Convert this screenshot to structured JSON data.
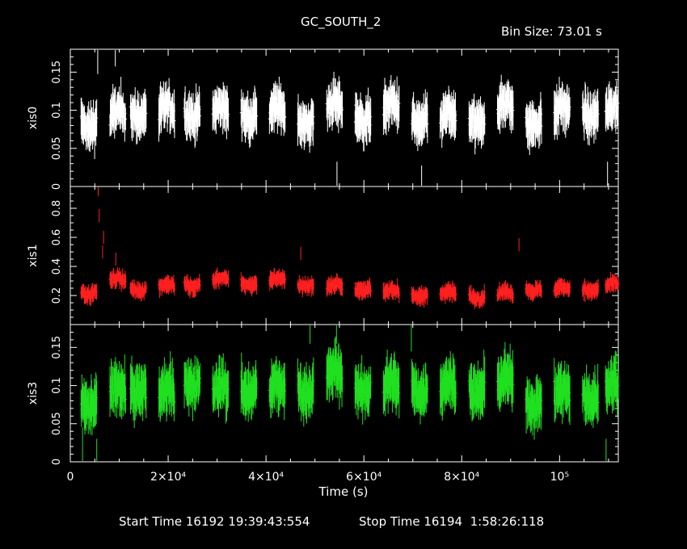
{
  "header": {
    "title": "GC_SOUTH_2",
    "bin_size": "Bin Size: 73.01 s"
  },
  "footer": {
    "start_time": "Start Time 16192 19:39:43:554",
    "stop_time": "Stop Time 16194  1:58:26:118"
  },
  "chart_data": {
    "type": "scatter",
    "title": "GC_SOUTH_2",
    "xlabel": "Time (s)",
    "xlim": [
      0,
      112000
    ],
    "x_ticks": [
      {
        "value": 0,
        "label": "0"
      },
      {
        "value": 20000,
        "label": "2×10⁴"
      },
      {
        "value": 40000,
        "label": "4×10⁴"
      },
      {
        "value": 60000,
        "label": "6×10⁴"
      },
      {
        "value": 80000,
        "label": "8×10⁴"
      },
      {
        "value": 100000,
        "label": "10⁵"
      }
    ],
    "x_minor_step": 5000,
    "orbit_period_s": 5800,
    "segment_start_s": [
      2200,
      8100,
      12300,
      18100,
      23300,
      29100,
      34900,
      40700,
      46500,
      52400,
      58200,
      64000,
      69800,
      75600,
      81500,
      87300,
      93100,
      98900,
      104700,
      109400
    ],
    "segment_length_s": 3200,
    "panels": [
      {
        "ylabel": "xis0",
        "color": "#ffffff",
        "ylim": [
          0,
          0.18
        ],
        "yticks": [
          {
            "value": 0,
            "label": "0"
          },
          {
            "value": 0.05,
            "label": "0.05"
          },
          {
            "value": 0.1,
            "label": "0.1"
          },
          {
            "value": 0.15,
            "label": "0.15"
          }
        ],
        "minor_step": 0.01,
        "mean_rate": 0.095,
        "spread": 0.025,
        "segment_means": [
          0.085,
          0.09,
          0.1,
          0.095,
          0.1,
          0.095,
          0.1,
          0.095,
          0.09,
          0.1,
          0.095,
          0.1,
          0.09,
          0.085,
          0.09,
          0.1,
          0.09,
          0.095,
          0.1,
          0.095
        ],
        "outliers": [
          {
            "x": 5600,
            "y": 0.17
          },
          {
            "x": 9200,
            "y": 0.18
          },
          {
            "x": 54500,
            "y": 0.01
          },
          {
            "x": 71800,
            "y": 0.005
          },
          {
            "x": 109800,
            "y": 0.01
          }
        ]
      },
      {
        "ylabel": "xis1",
        "color": "#ff2020",
        "ylim": [
          0,
          0.95
        ],
        "yticks": [
          {
            "value": 0.2,
            "label": "0.2"
          },
          {
            "value": 0.4,
            "label": "0.4"
          },
          {
            "value": 0.6,
            "label": "0.6"
          },
          {
            "value": 0.8,
            "label": "0.8"
          }
        ],
        "minor_step": 0.05,
        "mean_rate": 0.24,
        "spread": 0.05,
        "segment_means": [
          0.23,
          0.3,
          0.25,
          0.26,
          0.28,
          0.3,
          0.29,
          0.3,
          0.28,
          0.26,
          0.25,
          0.22,
          0.21,
          0.21,
          0.2,
          0.21,
          0.25,
          0.24,
          0.25,
          0.26
        ],
        "outliers": [
          {
            "x": 5700,
            "y": 0.93
          },
          {
            "x": 5900,
            "y": 0.75
          },
          {
            "x": 6800,
            "y": 0.6
          },
          {
            "x": 6600,
            "y": 0.5
          },
          {
            "x": 9300,
            "y": 0.45
          },
          {
            "x": 47100,
            "y": 0.49
          },
          {
            "x": 91700,
            "y": 0.55
          }
        ]
      },
      {
        "ylabel": "xis3",
        "color": "#20e020",
        "ylim": [
          0,
          0.18
        ],
        "yticks": [
          {
            "value": 0,
            "label": "0"
          },
          {
            "value": 0.05,
            "label": "0.05"
          },
          {
            "value": 0.1,
            "label": "0.1"
          },
          {
            "value": 0.15,
            "label": "0.15"
          }
        ],
        "minor_step": 0.01,
        "mean_rate": 0.09,
        "spread": 0.028,
        "segment_means": [
          0.08,
          0.09,
          0.1,
          0.085,
          0.11,
          0.09,
          0.1,
          0.09,
          0.1,
          0.11,
          0.1,
          0.095,
          0.1,
          0.095,
          0.1,
          0.1,
          0.085,
          0.085,
          0.09,
          0.095
        ],
        "outliers": [
          {
            "x": 2500,
            "y": 0.02
          },
          {
            "x": 5400,
            "y": 0.005
          },
          {
            "x": 49000,
            "y": 0.18
          },
          {
            "x": 54400,
            "y": 0.18
          },
          {
            "x": 69700,
            "y": 0.17
          },
          {
            "x": 109500,
            "y": 0.005
          }
        ]
      }
    ]
  }
}
